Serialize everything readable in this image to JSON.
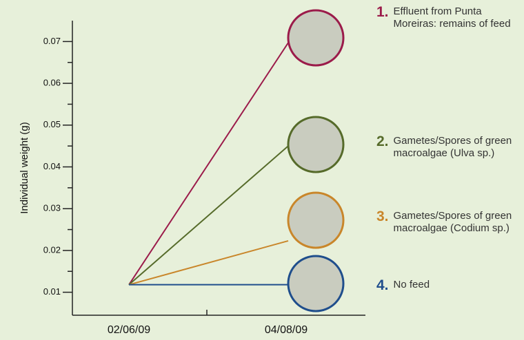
{
  "chart_data": {
    "type": "line",
    "y_label": "Individual weight (g)",
    "categories": [
      "02/06/09",
      "04/08/09"
    ],
    "ylim": [
      0.0045,
      0.075
    ],
    "yticks": [
      0.01,
      0.02,
      0.03,
      0.04,
      0.05,
      0.06,
      0.07
    ],
    "minor_yticks": [
      0.015,
      0.025,
      0.035,
      0.045,
      0.055,
      0.065
    ],
    "series": [
      {
        "number": "1.",
        "name": "Effluent from Punta Moreiras: remains of feed",
        "color": "#9b1b4a",
        "values": [
          0.0118,
          0.0697
        ]
      },
      {
        "number": "2.",
        "name": "Gametes/Spores of green macroalgae (Ulva sp.)",
        "color": "#566b2a",
        "values": [
          0.0118,
          0.045
        ]
      },
      {
        "number": "3.",
        "name": "Gametes/Spores of green macroalgae (Codium sp.)",
        "color": "#c9862a",
        "values": [
          0.0118,
          0.0223
        ]
      },
      {
        "number": "4.",
        "name": "No feed",
        "color": "#1f4e8c",
        "values": [
          0.0118,
          0.0118
        ]
      }
    ]
  }
}
